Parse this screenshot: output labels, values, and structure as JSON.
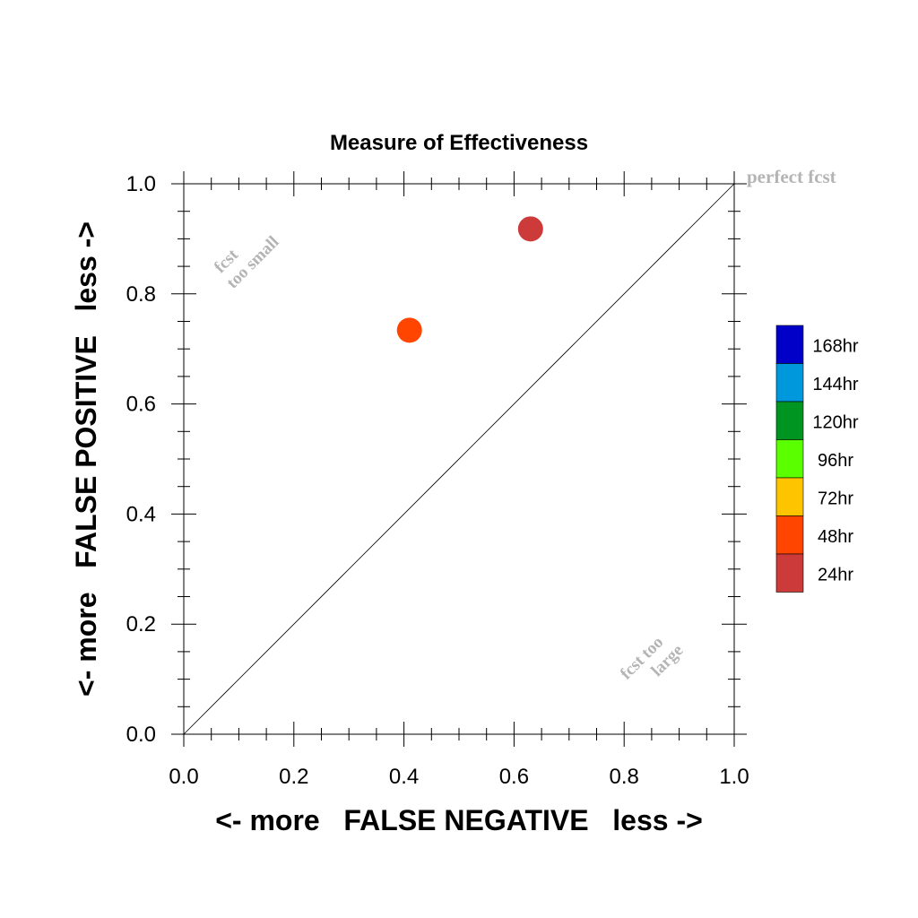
{
  "chart_data": {
    "type": "scatter",
    "title": "Measure of Effectiveness",
    "xlabel": "<- more   FALSE NEGATIVE   less ->",
    "ylabel": "<- more   FALSE POSITIVE   less ->",
    "xlim": [
      0.0,
      1.0
    ],
    "ylim": [
      0.0,
      1.0
    ],
    "x_ticks": [
      "0.0",
      "0.2",
      "0.4",
      "0.6",
      "0.8",
      "1.0"
    ],
    "y_ticks": [
      "0.0",
      "0.2",
      "0.4",
      "0.6",
      "0.8",
      "1.0"
    ],
    "grid": false,
    "diagonal": {
      "from": [
        0.0,
        0.0
      ],
      "to": [
        1.0,
        1.0
      ]
    },
    "annotations": {
      "perfect": "perfect fcst",
      "too_small_1": "fcst",
      "too_small_2": "too small",
      "too_large_1": "fcst too",
      "too_large_2": "large"
    },
    "points": [
      {
        "label": "24hr",
        "x": 0.63,
        "y": 0.918,
        "color": "#cc3a3a"
      },
      {
        "label": "48hr",
        "x": 0.41,
        "y": 0.734,
        "color": "#ff4500"
      }
    ],
    "legend": {
      "placement": "right",
      "entries": [
        {
          "label": "168hr",
          "color": "#0000c8"
        },
        {
          "label": "144hr",
          "color": "#0098dc"
        },
        {
          "label": "120hr",
          "color": "#009420"
        },
        {
          "label": "96hr",
          "color": "#5aff00"
        },
        {
          "label": "72hr",
          "color": "#ffc400"
        },
        {
          "label": "48hr",
          "color": "#ff4500"
        },
        {
          "label": "24hr",
          "color": "#cc3a3a"
        }
      ]
    },
    "colors": {
      "axis": "#000000",
      "annotation": "#b4b4b4"
    }
  }
}
